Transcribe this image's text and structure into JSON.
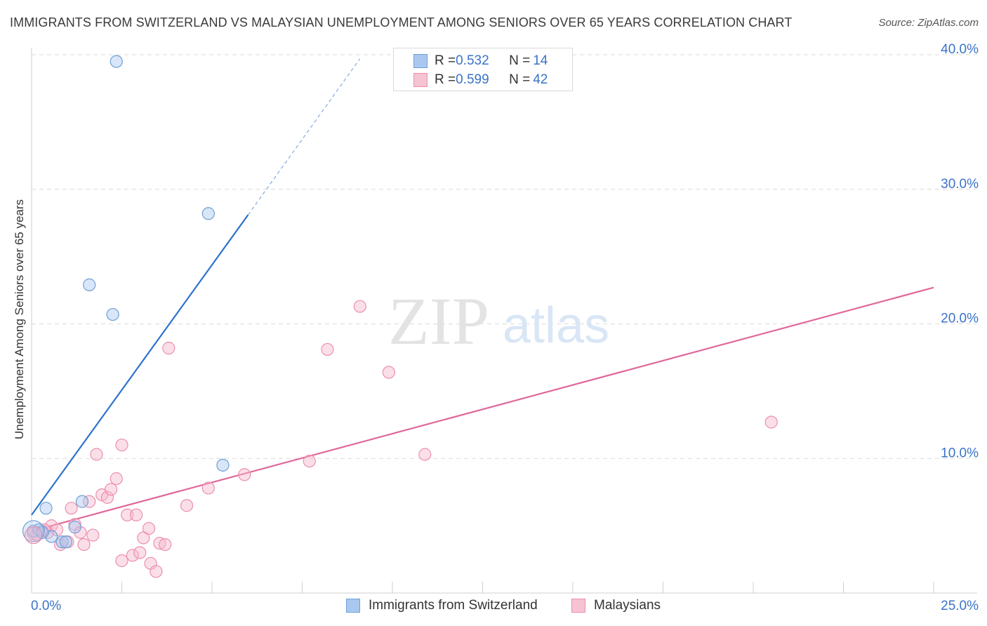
{
  "header": {
    "title": "IMMIGRANTS FROM SWITZERLAND VS MALAYSIAN UNEMPLOYMENT AMONG SENIORS OVER 65 YEARS CORRELATION CHART",
    "source": "Source: ZipAtlas.com"
  },
  "legend": {
    "rows": [
      {
        "r_label": "R = ",
        "r_value": "0.532",
        "n_label": "N = ",
        "n_value": "14"
      },
      {
        "r_label": "R = ",
        "r_value": "0.599",
        "n_label": "N = ",
        "n_value": "42"
      }
    ]
  },
  "bottom_legend": {
    "series1": "Immigrants from Switzerland",
    "series2": "Malaysians"
  },
  "watermark": {
    "zip": "ZIP",
    "atlas": "atlas"
  },
  "colors": {
    "blue_fill": "#aac8ef",
    "blue_stroke": "#6f9fd8",
    "blue_line": "#2e72cc",
    "pink_fill": "#f6b8cb",
    "pink_stroke": "#ec8fad",
    "pink_line": "#e0679a",
    "tick_text": "#3a73c8",
    "grid": "#dcdcdc"
  },
  "chart_data": {
    "type": "scatter",
    "title": "IMMIGRANTS FROM SWITZERLAND VS MALAYSIAN UNEMPLOYMENT AMONG SENIORS OVER 65 YEARS CORRELATION CHART",
    "xlabel": "",
    "ylabel": "Unemployment Among Seniors over 65 years",
    "xlim": [
      0,
      25
    ],
    "ylim": [
      0,
      40
    ],
    "x_tick_labels": [
      "0.0%",
      "25.0%"
    ],
    "y_ticks": [
      10,
      20,
      30,
      40
    ],
    "y_tick_labels": [
      "10.0%",
      "20.0%",
      "30.0%",
      "40.0%"
    ],
    "grid": true,
    "legend_position": "top-center",
    "series": [
      {
        "name": "Immigrants from Switzerland",
        "R": 0.532,
        "N": 14,
        "points": [
          [
            0.05,
            4.6
          ],
          [
            0.2,
            4.7
          ],
          [
            0.4,
            6.3
          ],
          [
            0.55,
            4.2
          ],
          [
            0.85,
            3.8
          ],
          [
            0.95,
            3.8
          ],
          [
            1.2,
            4.9
          ],
          [
            1.4,
            6.8
          ],
          [
            1.6,
            22.9
          ],
          [
            2.25,
            20.7
          ],
          [
            2.35,
            39.5
          ],
          [
            4.9,
            28.2
          ],
          [
            5.3,
            9.5
          ],
          [
            0.3,
            4.5
          ]
        ],
        "trend": {
          "x": [
            0,
            6
          ],
          "y": [
            5.8,
            28.1
          ]
        },
        "trend_dashed": {
          "x": [
            6,
            9.1
          ],
          "y": [
            28.1,
            39.7
          ]
        }
      },
      {
        "name": "Malaysians",
        "R": 0.599,
        "N": 42,
        "points": [
          [
            0.05,
            4.4
          ],
          [
            0.15,
            4.3
          ],
          [
            0.3,
            4.6
          ],
          [
            0.45,
            4.5
          ],
          [
            0.55,
            5.0
          ],
          [
            0.7,
            4.7
          ],
          [
            0.8,
            3.6
          ],
          [
            1.0,
            3.8
          ],
          [
            1.1,
            6.3
          ],
          [
            1.2,
            5.1
          ],
          [
            1.35,
            4.5
          ],
          [
            1.45,
            3.6
          ],
          [
            1.6,
            6.8
          ],
          [
            1.7,
            4.3
          ],
          [
            1.8,
            10.3
          ],
          [
            1.95,
            7.3
          ],
          [
            2.1,
            7.1
          ],
          [
            2.2,
            7.7
          ],
          [
            2.35,
            8.5
          ],
          [
            2.5,
            11.0
          ],
          [
            2.5,
            2.4
          ],
          [
            2.65,
            5.8
          ],
          [
            2.8,
            2.8
          ],
          [
            2.9,
            5.8
          ],
          [
            3.0,
            3.0
          ],
          [
            3.1,
            4.1
          ],
          [
            3.25,
            4.8
          ],
          [
            3.3,
            2.2
          ],
          [
            3.45,
            1.6
          ],
          [
            3.55,
            3.7
          ],
          [
            3.7,
            3.6
          ],
          [
            3.8,
            18.2
          ],
          [
            4.3,
            6.5
          ],
          [
            4.9,
            7.8
          ],
          [
            5.9,
            8.8
          ],
          [
            7.7,
            9.8
          ],
          [
            8.2,
            18.1
          ],
          [
            9.1,
            21.3
          ],
          [
            9.9,
            16.4
          ],
          [
            10.9,
            10.3
          ],
          [
            20.5,
            12.7
          ],
          [
            0.35,
            4.7
          ]
        ],
        "trend": {
          "x": [
            0,
            25
          ],
          "y": [
            4.6,
            22.7
          ]
        }
      }
    ]
  }
}
